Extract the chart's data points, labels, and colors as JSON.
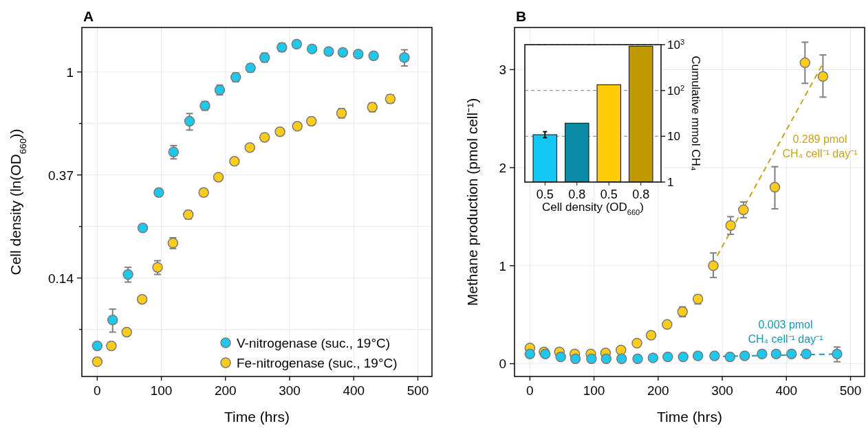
{
  "chart_data": [
    {
      "type": "scatter",
      "title": "A",
      "xlabel": "Time (hrs)",
      "ylabel": "Cell density (ln(OD$_{660}$))",
      "xlim": [
        -24,
        522
      ],
      "xticks": [
        0,
        100,
        200,
        300,
        400,
        500
      ],
      "ylim": [
        0.052,
        1.54
      ],
      "yticks": [
        {
          "value": 0.0821,
          "label": null
        },
        {
          "value": 0.1353,
          "label": "0.14"
        },
        {
          "value": 0.2231,
          "label": null
        },
        {
          "value": 0.3679,
          "label": "0.37"
        },
        {
          "value": 0.6065,
          "label": null
        },
        1
      ],
      "log": "y",
      "grid": true,
      "legend": "bottom right",
      "marker": "circle",
      "series": [
        {
          "name": "V-nitrogenase (suc., 19°C)",
          "color": "#1ec8ec",
          "x": [
            0,
            24,
            48,
            71,
            96,
            119,
            144,
            168,
            191,
            216,
            239,
            261,
            288,
            311,
            335,
            361,
            383,
            407,
            431,
            479
          ],
          "values": [
            0.07,
            0.09,
            0.14,
            0.22,
            0.31,
            0.46,
            0.62,
            0.72,
            0.84,
            0.95,
            1.04,
            1.15,
            1.27,
            1.31,
            1.25,
            1.22,
            1.21,
            1.19,
            1.17,
            1.15
          ],
          "errors": [
            null,
            [
              0.08,
              0.1
            ],
            [
              0.13,
              0.15
            ],
            null,
            null,
            [
              0.43,
              0.489
            ],
            [
              0.569,
              0.668
            ],
            [
              0.69,
              0.75
            ],
            [
              0.8,
              0.88
            ],
            [
              0.91,
              0.99
            ],
            [
              1.0,
              1.08
            ],
            [
              1.1,
              1.2
            ],
            [
              1.22,
              1.32
            ],
            null,
            null,
            null,
            null,
            null,
            null,
            [
              1.06,
              1.24
            ]
          ]
        },
        {
          "name": "Fe-nitrogenase (suc., 19°C)",
          "color": "#ffcc1a",
          "x": [
            0,
            22,
            46,
            70,
            94,
            118,
            142,
            166,
            189,
            214,
            238,
            261,
            285,
            312,
            334,
            381,
            429,
            457
          ],
          "values": [
            0.06,
            0.07,
            0.08,
            0.11,
            0.15,
            0.19,
            0.25,
            0.31,
            0.36,
            0.42,
            0.48,
            0.53,
            0.56,
            0.59,
            0.62,
            0.67,
            0.71,
            0.77
          ],
          "errors": [
            null,
            null,
            null,
            null,
            [
              0.14,
              0.16
            ],
            [
              0.18,
              0.2
            ],
            [
              0.24,
              0.26
            ],
            null,
            null,
            null,
            null,
            null,
            null,
            null,
            [
              0.6,
              0.64
            ],
            [
              0.64,
              0.7
            ],
            [
              0.68,
              0.74
            ],
            [
              0.74,
              0.8
            ]
          ]
        }
      ]
    },
    {
      "type": "scatter",
      "title": "B",
      "xlabel": "Time (hrs)",
      "ylabel": "Methane production (pmol cell⁻¹)",
      "xlim": [
        -24,
        522
      ],
      "xticks": [
        0,
        100,
        200,
        300,
        400,
        500
      ],
      "ylim": [
        -0.13,
        3.43
      ],
      "yticks": [
        0,
        1,
        2,
        3
      ],
      "grid": true,
      "marker": "circle",
      "annotations": [
        "0.289 pmol\nCH₄ cell⁻¹ day⁻¹",
        "0.003 pmol\nCH₄ cell⁻¹ day⁻¹"
      ],
      "series": [
        {
          "type": "line",
          "marker": "none",
          "color": "#c9a21a",
          "line_style": "dashed",
          "x": [
            292,
            456
          ],
          "values": [
            1.1,
            3.05
          ]
        },
        {
          "type": "line",
          "marker": "none",
          "color": "#1596b5",
          "line_style": "dashed",
          "x": [
            301,
            485
          ],
          "values": [
            0.075,
            0.1
          ]
        },
        {
          "color": "#ffcc1a",
          "x": [
            0,
            22,
            46,
            70,
            95,
            118,
            142,
            167,
            189,
            214,
            238,
            262,
            286,
            313,
            333,
            382,
            429,
            457
          ],
          "values": [
            0.16,
            0.12,
            0.12,
            0.1,
            0.1,
            0.11,
            0.14,
            0.21,
            0.29,
            0.4,
            0.53,
            0.66,
            1.0,
            1.41,
            1.57,
            1.8,
            3.07,
            2.93
          ],
          "errors": [
            null,
            null,
            null,
            null,
            null,
            null,
            null,
            null,
            null,
            null,
            [
              0.48,
              0.58
            ],
            [
              0.61,
              0.7
            ],
            [
              0.88,
              1.13
            ],
            [
              1.32,
              1.5
            ],
            [
              1.49,
              1.65
            ],
            [
              1.58,
              2.01
            ],
            [
              2.86,
              3.28
            ],
            [
              2.72,
              3.15
            ]
          ]
        },
        {
          "color": "#1ec8ec",
          "x": [
            0,
            24,
            48,
            71,
            96,
            119,
            143,
            168,
            192,
            215,
            239,
            262,
            288,
            312,
            335,
            362,
            384,
            408,
            431,
            479
          ],
          "values": [
            0.1,
            0.1,
            0.07,
            0.05,
            0.05,
            0.05,
            0.05,
            0.05,
            0.06,
            0.07,
            0.07,
            0.08,
            0.08,
            0.07,
            0.08,
            0.1,
            0.1,
            0.1,
            0.1,
            0.1
          ],
          "errors": [
            null,
            null,
            null,
            null,
            null,
            null,
            null,
            null,
            null,
            null,
            null,
            null,
            null,
            null,
            null,
            null,
            null,
            null,
            null,
            [
              0.02,
              0.17
            ]
          ]
        }
      ]
    },
    {
      "type": "bar",
      "xlabel": "Cell density (OD$_{660}$)",
      "y2label": "Cumulative mmol CH₄",
      "categories": [
        "0.5",
        "0.8",
        "0.5",
        "0.8"
      ],
      "y2lim": [
        1,
        1000
      ],
      "y2ticks": [
        1,
        10,
        {
          "value": 100,
          "label": "10$^{2}$"
        },
        {
          "value": 1000,
          "label": "10$^{3}$"
        }
      ],
      "log": "y2",
      "grid": "y",
      "series": [
        {
          "axis": "y2",
          "colors": [
            "#12c8f2",
            "#0b8aa8",
            "#ffcc0a",
            "#bf9900"
          ],
          "values": [
            10.8,
            19.3,
            133,
            923
          ],
          "errors": [
            [
              9.3,
              12.6
            ],
            null,
            null,
            null
          ]
        }
      ]
    }
  ]
}
